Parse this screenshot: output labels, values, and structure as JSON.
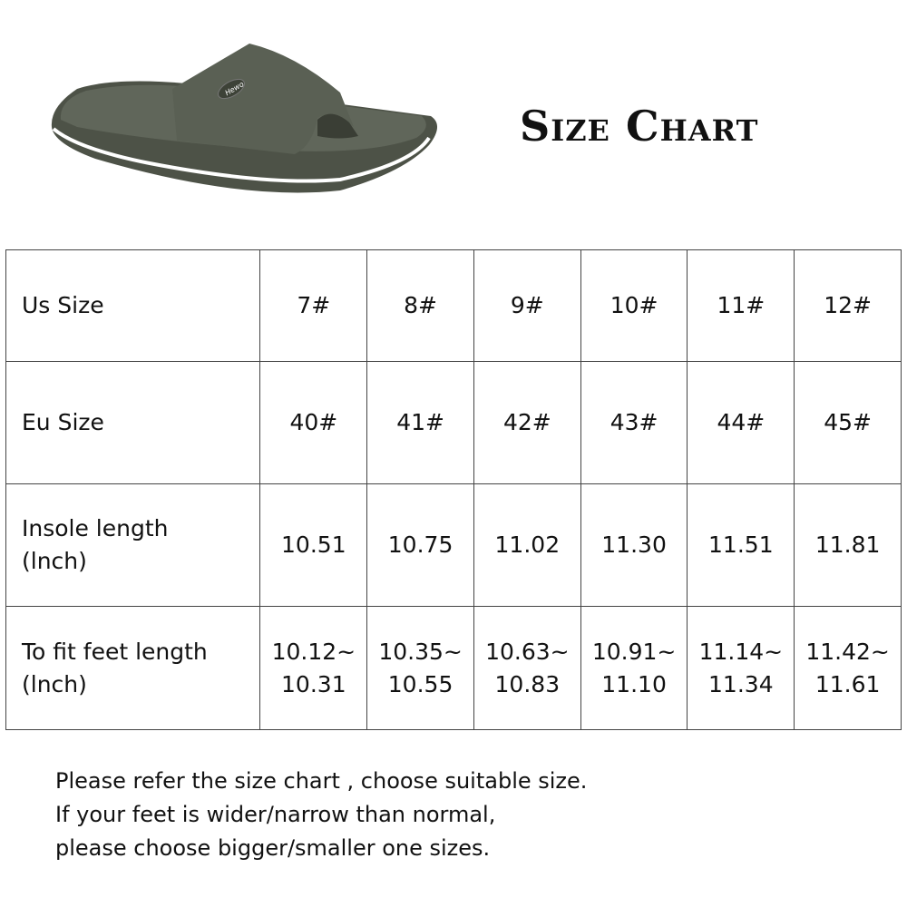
{
  "title": "Size Chart",
  "product_image": {
    "description_icon": "green-slide-sandal",
    "color": "#5a5f53",
    "logo": "Hewo"
  },
  "table": {
    "rows": [
      {
        "label": "Us Size",
        "values": [
          "7#",
          "8#",
          "9#",
          "10#",
          "11#",
          "12#"
        ]
      },
      {
        "label": "Eu Size",
        "values": [
          "40#",
          "41#",
          "42#",
          "43#",
          "44#",
          "45#"
        ]
      },
      {
        "label": "Insole length",
        "label2": "(lnch)",
        "values": [
          "10.51",
          "10.75",
          "11.02",
          "11.30",
          "11.51",
          "11.81"
        ]
      },
      {
        "label": "To fit feet length",
        "label2": "(lnch)",
        "values": [
          "10.12~",
          "10.35~",
          "10.63~",
          "10.91~",
          "11.14~",
          "11.42~"
        ],
        "values2": [
          "10.31",
          "10.55",
          "10.83",
          "11.10",
          "11.34",
          "11.61"
        ]
      }
    ]
  },
  "notes": [
    "Please refer the size chart , choose suitable size.",
    "If your feet is wider/narrow than normal,",
    "please choose bigger/smaller one sizes."
  ]
}
